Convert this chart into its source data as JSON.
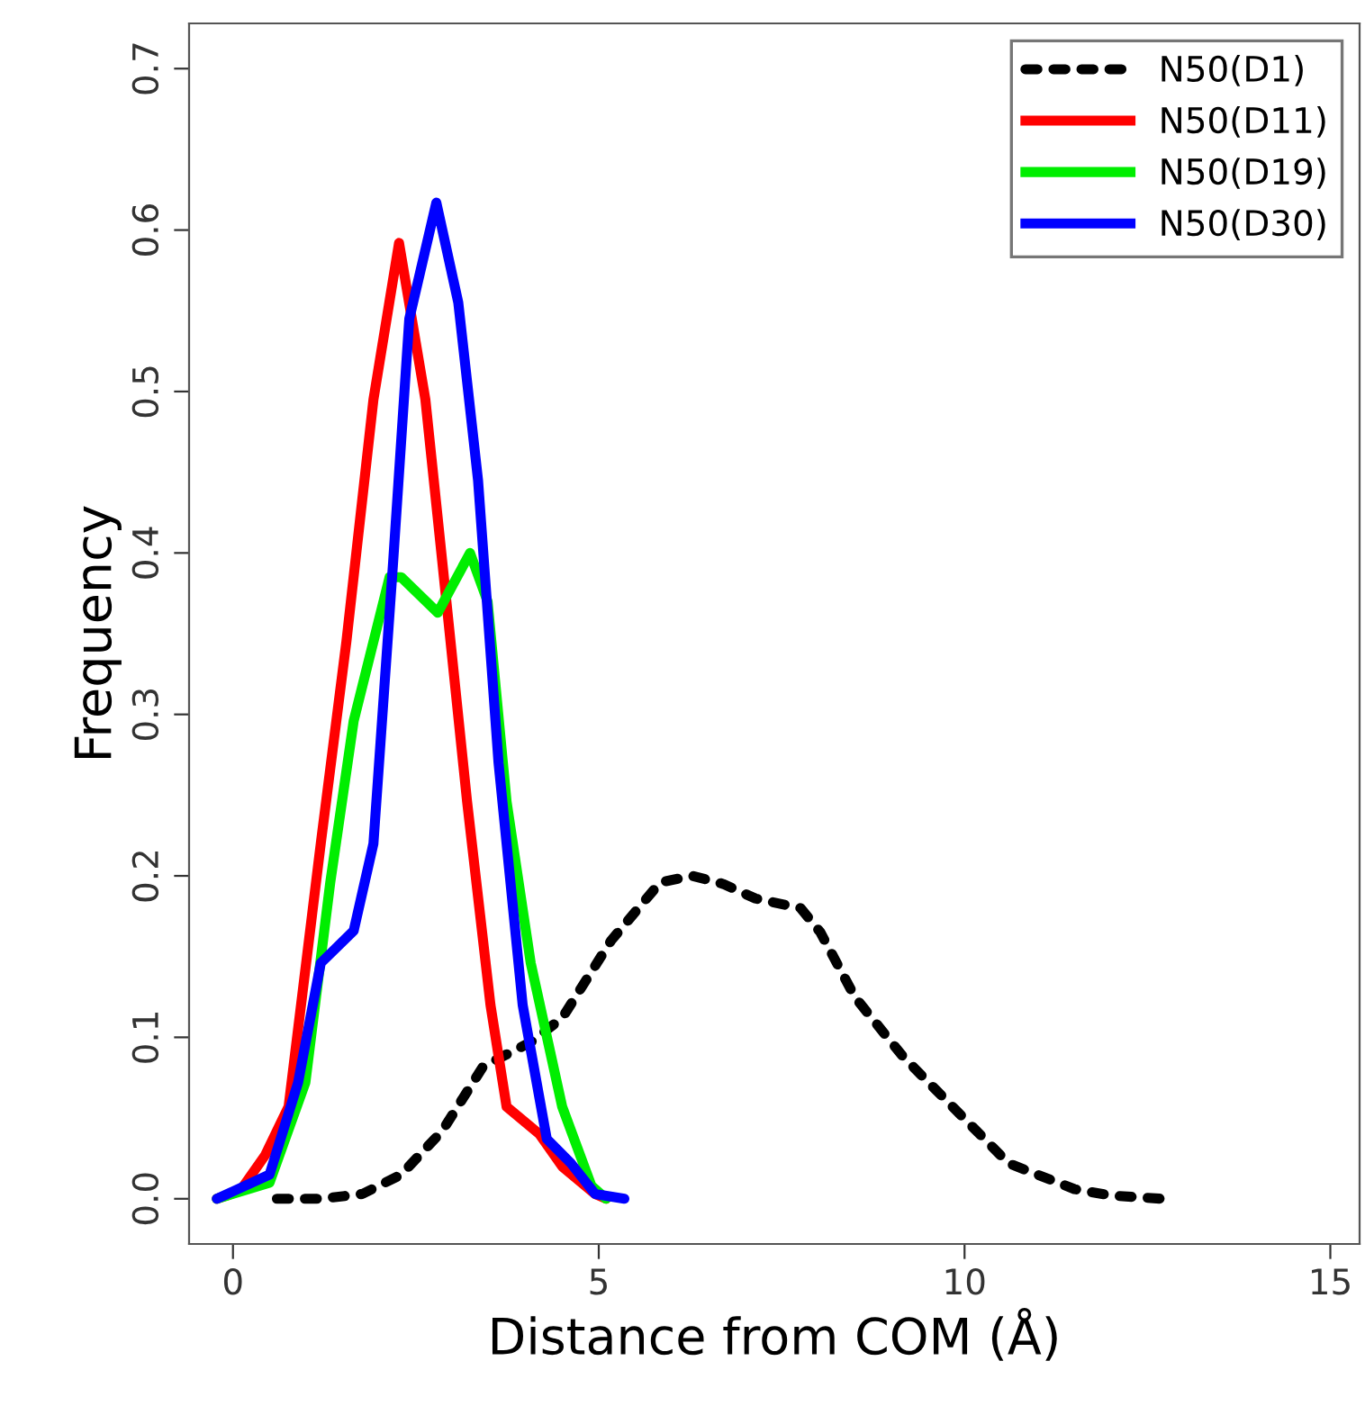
{
  "chart_data": {
    "type": "line",
    "xlabel": "Distance from COM (Å)",
    "ylabel": "Frequency",
    "xlim": [
      -0.6,
      15.4
    ],
    "ylim": [
      -0.028,
      0.728
    ],
    "xticks": [
      0,
      5,
      10,
      15
    ],
    "yticks": [
      {
        "value": 0,
        "label": "0.0"
      },
      0.1,
      0.2,
      0.3,
      0.4,
      0.5,
      0.6,
      0.7
    ],
    "grid": false,
    "legend": "top right",
    "marker": "none",
    "series": [
      {
        "name": "N50(D1)",
        "color": "#000000",
        "line_style": "dotted",
        "x": [
          0.6,
          1.2,
          1.77,
          2.3,
          2.86,
          3.42,
          4.07,
          4.5,
          5.17,
          5.84,
          6.28,
          6.7,
          7.14,
          7.76,
          8.03,
          8.5,
          9.16,
          9.88,
          10.6,
          11.5,
          12.0,
          12.7
        ],
        "values": [
          0,
          0,
          0.003,
          0.015,
          0.042,
          0.082,
          0.097,
          0.112,
          0.16,
          0.196,
          0.2,
          0.195,
          0.186,
          0.18,
          0.165,
          0.125,
          0.088,
          0.055,
          0.022,
          0.006,
          0.002,
          0
        ]
      },
      {
        "name": "N50(D11)",
        "color": "#ff0000",
        "line_style": "solid",
        "x": [
          -0.22,
          0.1,
          0.44,
          0.76,
          1.2,
          1.55,
          1.92,
          2.27,
          2.63,
          2.86,
          3.2,
          3.52,
          3.74,
          4.19,
          4.5,
          4.95,
          5.1
        ],
        "values": [
          0,
          0.005,
          0.027,
          0.057,
          0.22,
          0.345,
          0.495,
          0.592,
          0.495,
          0.395,
          0.246,
          0.12,
          0.057,
          0.04,
          0.02,
          0.003,
          0
        ]
      },
      {
        "name": "N50(D19)",
        "color": "#00ee00",
        "line_style": "solid",
        "x": [
          -0.22,
          0.5,
          0.99,
          1.33,
          1.65,
          2.14,
          2.3,
          2.8,
          3.24,
          3.48,
          3.74,
          4.07,
          4.5,
          4.9,
          5.1
        ],
        "values": [
          0,
          0.01,
          0.072,
          0.196,
          0.296,
          0.385,
          0.385,
          0.363,
          0.4,
          0.37,
          0.246,
          0.146,
          0.057,
          0.008,
          0
        ]
      },
      {
        "name": "N50(D30)",
        "color": "#0000ff",
        "line_style": "solid",
        "x": [
          -0.22,
          0.5,
          0.89,
          1.2,
          1.65,
          1.92,
          2.19,
          2.41,
          2.78,
          3.08,
          3.35,
          3.63,
          3.96,
          4.29,
          4.62,
          4.95,
          5.35
        ],
        "values": [
          0,
          0.015,
          0.072,
          0.146,
          0.166,
          0.22,
          0.395,
          0.545,
          0.617,
          0.555,
          0.445,
          0.27,
          0.12,
          0.037,
          0.022,
          0.003,
          0
        ]
      }
    ]
  }
}
